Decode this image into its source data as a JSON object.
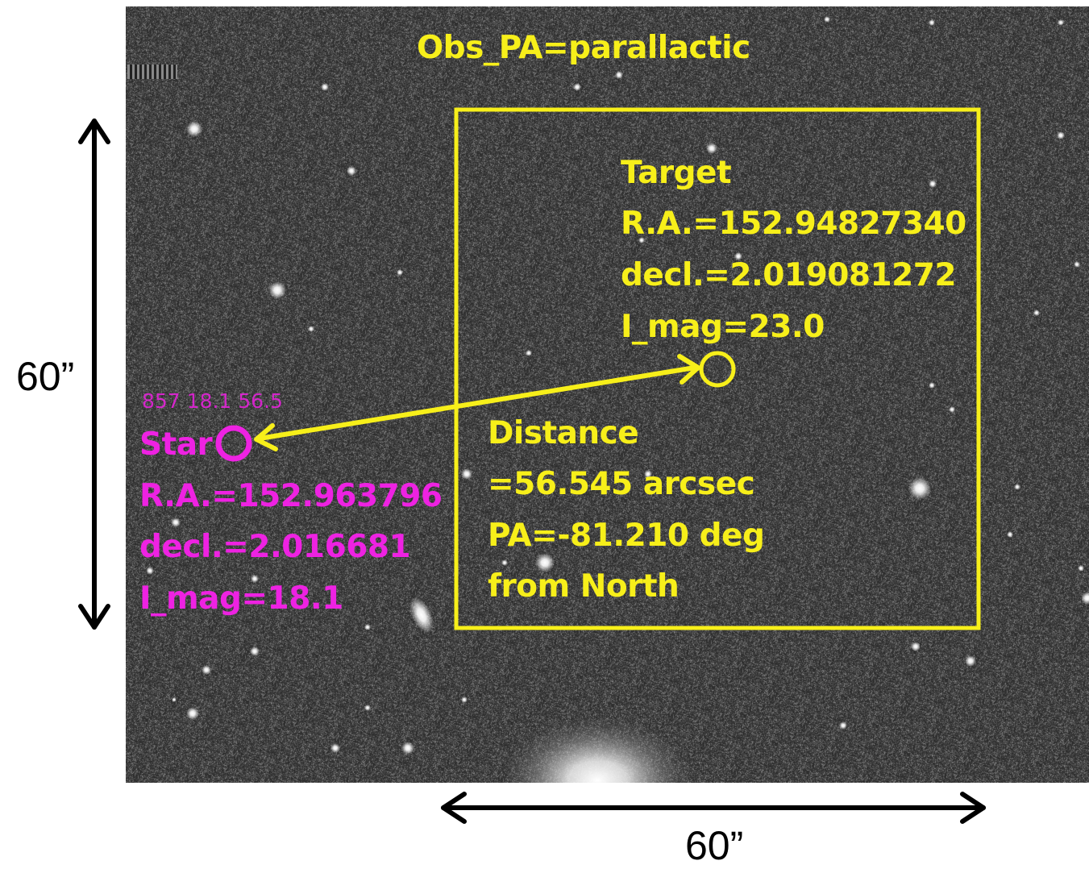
{
  "title": "Obs_PA=parallactic",
  "target": {
    "heading": "Target",
    "ra": "R.A.=152.94827340",
    "decl": "decl.=2.019081272",
    "mag": "I_mag=23.0"
  },
  "star": {
    "tiny_label": "857 18.1 56.5",
    "heading": "Star",
    "ra": "R.A.=152.963796",
    "decl": "decl.=2.016681",
    "mag": "I_mag=18.1"
  },
  "distance": {
    "line1": "Distance",
    "line2": "=56.545 arcsec",
    "line3": "PA=-81.210 deg",
    "line4": "from North"
  },
  "scale": {
    "vertical": "60”",
    "horizontal": "60”"
  },
  "colors": {
    "annotation_yellow": "#f7ef1a",
    "star_magenta": "#ee22e2",
    "sky_background": "#3a3a3a"
  }
}
